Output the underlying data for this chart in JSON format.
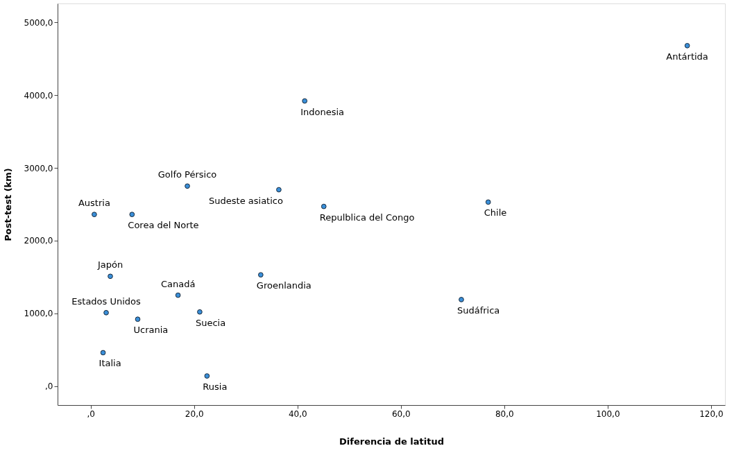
{
  "chart_data": {
    "type": "scatter",
    "xlabel": "Diferencia de latitud",
    "ylabel": "Post-test (km)",
    "x": [
      115.4,
      41.4,
      18.7,
      36.4,
      45.1,
      76.9,
      0.7,
      8.0,
      3.8,
      16.9,
      32.9,
      3.0,
      21.1,
      9.1,
      71.7,
      2.4,
      22.5
    ],
    "series": [
      {
        "color": "#3a8fd9",
        "values": [
          4680,
          3920,
          2750,
          2700,
          2470,
          2530,
          2360,
          2360,
          1510,
          1250,
          1530,
          1010,
          1020,
          920,
          1190,
          460,
          140
        ]
      }
    ],
    "marker": "circle",
    "grid": false,
    "legend": false,
    "xlim": [
      -6.4,
      122.7
    ],
    "ylim": [
      -260,
      5260
    ],
    "xticks": [
      {
        "value": 0,
        "label": ",0"
      },
      {
        "value": 20,
        "label": "20,0"
      },
      {
        "value": 40,
        "label": "40,0"
      },
      {
        "value": 60,
        "label": "60,0"
      },
      {
        "value": 80,
        "label": "80,0"
      },
      {
        "value": 100,
        "label": "100,0"
      },
      {
        "value": 120,
        "label": "120,0"
      }
    ],
    "yticks": [
      {
        "value": 0,
        "label": ",0"
      },
      {
        "value": 1000,
        "label": "1000,0"
      },
      {
        "value": 2000,
        "label": "2000,0"
      },
      {
        "value": 3000,
        "label": "3000,0"
      },
      {
        "value": 4000,
        "label": "4000,0"
      },
      {
        "value": 5000,
        "label": "5000,0"
      }
    ],
    "annotations": [
      {
        "text": "Antártida",
        "x": 115.4,
        "y": 4680
      },
      {
        "text": "Indonesia",
        "x": 41.4,
        "y": 3920
      },
      {
        "text": "Golfo Pérsico",
        "x": 18.7,
        "y": 2750
      },
      {
        "text": "Sudeste asiatico",
        "x": 36.4,
        "y": 2700
      },
      {
        "text": "Repulblica del Congo",
        "x": 45.1,
        "y": 2470
      },
      {
        "text": "Chile",
        "x": 76.9,
        "y": 2530
      },
      {
        "text": "Austria",
        "x": 0.7,
        "y": 2360
      },
      {
        "text": "Corea del Norte",
        "x": 8.0,
        "y": 2360
      },
      {
        "text": "Japón",
        "x": 3.8,
        "y": 1510
      },
      {
        "text": "Canadá",
        "x": 16.9,
        "y": 1250
      },
      {
        "text": "Groenlandia",
        "x": 32.9,
        "y": 1530
      },
      {
        "text": "Estados Unidos",
        "x": 3.0,
        "y": 1010
      },
      {
        "text": "Suecia",
        "x": 21.1,
        "y": 1020
      },
      {
        "text": "Ucrania",
        "x": 9.1,
        "y": 920
      },
      {
        "text": "Sudáfrica",
        "x": 71.7,
        "y": 1190
      },
      {
        "text": "Italia",
        "x": 2.4,
        "y": 460
      },
      {
        "text": "Rusia",
        "x": 22.5,
        "y": 140
      }
    ]
  }
}
